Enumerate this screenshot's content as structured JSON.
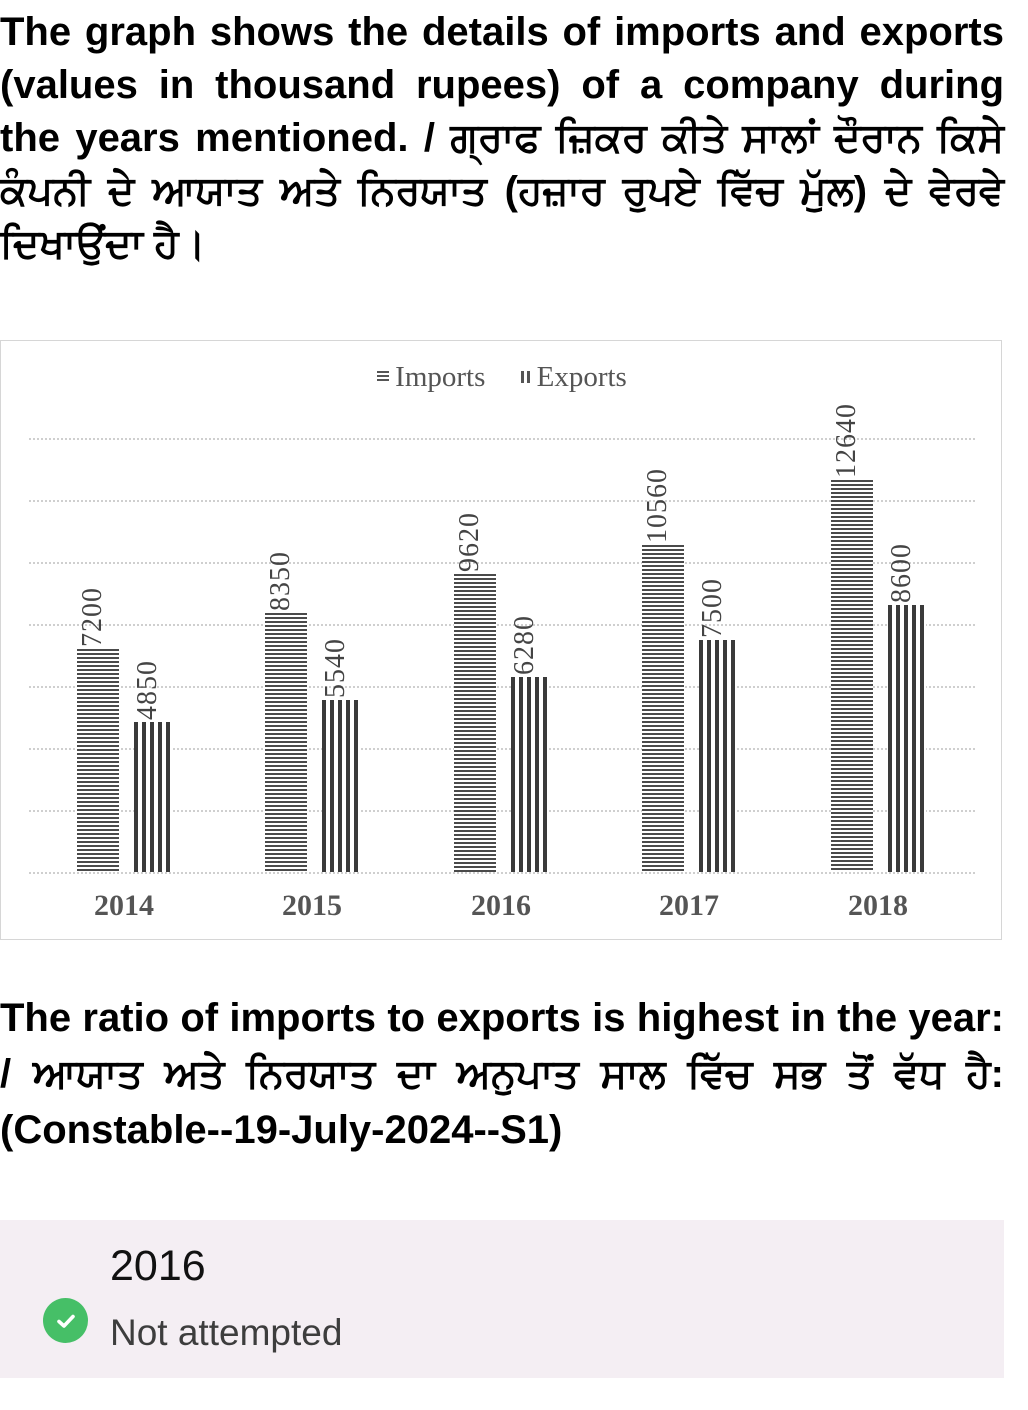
{
  "question": {
    "intro": "The graph shows the details of imports and exports (values in thousand rupees) of a company during the years mentioned. / ਗ੍ਰਾਫ ਜ਼ਿਕਰ ਕੀਤੇ ਸਾਲਾਂ ਦੌਰਾਨ ਕਿਸੇ ਕੰਪਨੀ ਦੇ ਆਯਾਤ ਅਤੇ ਨਿਰਯਾਤ (ਹਜ਼ਾਰ ਰੁਪਏ ਵਿੱਚ ਮੁੱਲ) ਦੇ ਵੇਰਵੇ ਦਿਖਾਉਂਦਾ ਹੈ।",
    "text": "The ratio of imports to exports is highest in the year: / ਆਯਾਤ ਅਤੇ ਨਿਰਯਾਤ ਦਾ ਅਨੁਪਾਤ ਸਾਲ ਵਿੱਚ ਸਭ ਤੋਂ ਵੱਧ ਹੈ: (Constable--19-July-2024--S1)"
  },
  "answer": {
    "value": "2016",
    "status": "Not attempted",
    "icon": "check-circle-icon",
    "icon_color": "#46bf67",
    "card_background": "#f4eef3"
  },
  "chart_data": {
    "type": "bar",
    "title": "",
    "xlabel": "",
    "ylabel": "",
    "categories": [
      "2014",
      "2015",
      "2016",
      "2017",
      "2018"
    ],
    "series": [
      {
        "name": "Imports",
        "values": [
          7200,
          8350,
          9620,
          10560,
          12640
        ],
        "pattern": "horizontal-stripes"
      },
      {
        "name": "Exports",
        "values": [
          4850,
          5540,
          6280,
          7500,
          8600
        ],
        "pattern": "vertical-stripes"
      }
    ],
    "ylim": [
      0,
      14000
    ],
    "grid_step": 2000,
    "grid": true,
    "y_axis_visible": false,
    "data_labels": true,
    "legend_position": "top",
    "legend": [
      "Imports",
      "Exports"
    ]
  }
}
